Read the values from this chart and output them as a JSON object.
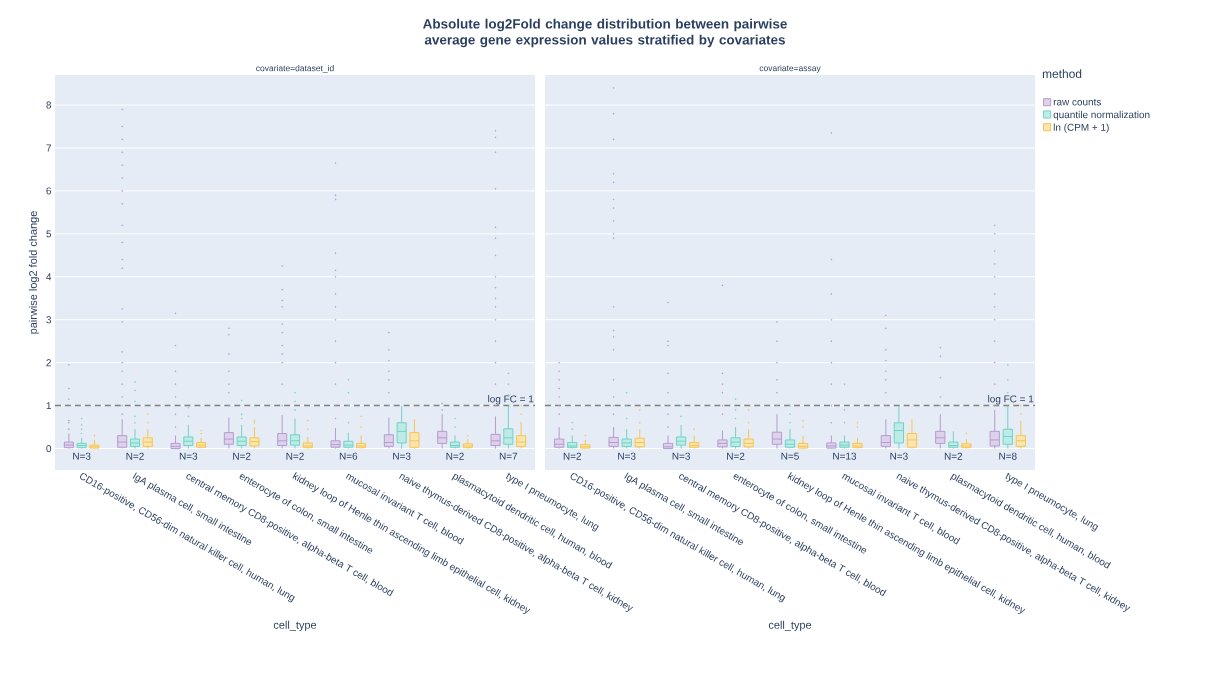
{
  "chart_data": [
    {
      "type": "box",
      "title": "Absolute log2Fold change distribution between pairwise average gene expression values stratified by covariates",
      "subtitle": "covariate=dataset_id",
      "xlabel": "cell_type",
      "ylabel": "pairwise log2 fold change",
      "categories": [
        "CD16-positive, CD56-dim natural killer cell, human, lung",
        "IgA plasma cell, small intestine",
        "central memory CD8-positive, alpha-beta T cell, blood",
        "enterocyte of colon, small intestine",
        "kidney loop of Henle thin ascending limb epithelial cell, kidney",
        "mucosal invariant T cell, blood",
        "naive thymus-derived CD8-positive, alpha-beta T cell, kidney",
        "plasmacytoid dendritic cell, human, blood",
        "type I pneumocyte, lung"
      ],
      "ylim": [
        -0.5,
        8.7
      ],
      "yticks": [
        0,
        1,
        2,
        3,
        4,
        5,
        6,
        7,
        8
      ],
      "grid": "y",
      "ref_lines": [
        {
          "axis": "y",
          "value": 1,
          "label": "log FC = 1",
          "color": "#7f7f7f",
          "line_style": "dashed"
        }
      ],
      "annotations": [
        "N=3",
        "N=2",
        "N=3",
        "N=2",
        "N=2",
        "N=6",
        "N=3",
        "N=2",
        "N=7"
      ],
      "series": [
        {
          "color": "#b49cd0",
          "boxes": [
            {
              "low": 0,
              "q1": 0.02,
              "median": 0.08,
              "q3": 0.15,
              "high": 0.35,
              "outliers": [
                0.45,
                0.6,
                0.65,
                1.15,
                1.4,
                1.95
              ]
            },
            {
              "low": 0,
              "q1": 0.03,
              "median": 0.15,
              "q3": 0.3,
              "high": 0.68,
              "outliers": [
                0.8,
                1.0,
                1.2,
                1.5,
                1.8,
                2.0,
                2.25,
                2.95,
                3.25,
                4.2,
                4.4,
                4.8,
                5.2,
                5.7,
                6.0,
                6.3,
                6.6,
                6.9,
                7.2,
                7.5,
                7.9
              ]
            },
            {
              "low": 0,
              "q1": 0,
              "median": 0.05,
              "q3": 0.12,
              "high": 0.3,
              "outliers": [
                0.5,
                0.8,
                1.2,
                1.5,
                1.8,
                2.4,
                3.15
              ]
            },
            {
              "low": 0,
              "q1": 0.1,
              "median": 0.22,
              "q3": 0.37,
              "high": 0.72,
              "outliers": [
                1.0,
                1.3,
                1.5,
                1.8,
                2.2,
                2.65,
                2.8
              ]
            },
            {
              "low": 0,
              "q1": 0.07,
              "median": 0.18,
              "q3": 0.35,
              "high": 0.78,
              "outliers": [
                1.0,
                1.5,
                2.0,
                2.2,
                2.4,
                2.7,
                2.9,
                3.3,
                3.45,
                3.7,
                4.25
              ]
            },
            {
              "low": 0,
              "q1": 0.03,
              "median": 0.09,
              "q3": 0.18,
              "high": 0.48,
              "outliers": [
                0.7,
                1.0,
                1.5,
                2.0,
                2.5,
                3.0,
                3.3,
                3.6,
                4.0,
                4.15,
                4.55,
                5.8,
                5.9,
                6.65
              ]
            },
            {
              "low": 0,
              "q1": 0.05,
              "median": 0.14,
              "q3": 0.32,
              "high": 0.72,
              "outliers": [
                1.0,
                1.3,
                1.6,
                1.8,
                2.05,
                2.3,
                2.7
              ]
            },
            {
              "low": 0,
              "q1": 0.12,
              "median": 0.25,
              "q3": 0.4,
              "high": 0.8,
              "outliers": [
                0.9,
                1.05
              ]
            },
            {
              "low": 0,
              "q1": 0.07,
              "median": 0.18,
              "q3": 0.33,
              "high": 0.75,
              "outliers": [
                1.0,
                1.5,
                2.0,
                2.5,
                3.0,
                3.3,
                3.5,
                3.75,
                4.0,
                4.5,
                4.9,
                5.15,
                6.05,
                6.9,
                7.25,
                7.4
              ]
            }
          ]
        },
        {
          "color": "#6fd3c6",
          "boxes": [
            {
              "low": 0,
              "q1": 0.02,
              "median": 0.07,
              "q3": 0.12,
              "high": 0.25,
              "outliers": [
                0.35,
                0.45,
                0.55,
                0.7
              ]
            },
            {
              "low": 0,
              "q1": 0.05,
              "median": 0.13,
              "q3": 0.22,
              "high": 0.45,
              "outliers": [
                0.6,
                0.75,
                1.1,
                1.35,
                1.55
              ]
            },
            {
              "low": 0,
              "q1": 0.07,
              "median": 0.17,
              "q3": 0.27,
              "high": 0.55,
              "outliers": [
                0.75,
                0.95
              ]
            },
            {
              "low": 0,
              "q1": 0.07,
              "median": 0.17,
              "q3": 0.27,
              "high": 0.55,
              "outliers": [
                0.7,
                0.8,
                1.12
              ]
            },
            {
              "low": 0,
              "q1": 0.08,
              "median": 0.18,
              "q3": 0.32,
              "high": 0.7,
              "outliers": [
                0.9,
                1.1,
                1.3
              ]
            },
            {
              "low": 0,
              "q1": 0.03,
              "median": 0.08,
              "q3": 0.17,
              "high": 0.37,
              "outliers": [
                0.6,
                1.0,
                1.3,
                1.6
              ]
            },
            {
              "low": 0,
              "q1": 0.13,
              "median": 0.4,
              "q3": 0.6,
              "high": 1.0
            },
            {
              "low": 0,
              "q1": 0.03,
              "median": 0.07,
              "q3": 0.15,
              "high": 0.3,
              "outliers": [
                0.5,
                0.7
              ]
            },
            {
              "low": 0,
              "q1": 0.1,
              "median": 0.25,
              "q3": 0.46,
              "high": 1.0,
              "outliers": [
                1.25,
                1.5,
                1.75
              ]
            }
          ]
        },
        {
          "color": "#f7c54f",
          "boxes": [
            {
              "low": 0,
              "q1": 0.01,
              "median": 0.04,
              "q3": 0.08,
              "high": 0.2,
              "outliers": [
                0.3
              ]
            },
            {
              "low": 0,
              "q1": 0.05,
              "median": 0.15,
              "q3": 0.25,
              "high": 0.45,
              "outliers": [
                0.6,
                0.8
              ]
            },
            {
              "low": 0,
              "q1": 0.03,
              "median": 0.08,
              "q3": 0.14,
              "high": 0.25,
              "outliers": [
                0.35,
                0.42
              ]
            },
            {
              "low": 0,
              "q1": 0.06,
              "median": 0.16,
              "q3": 0.25,
              "high": 0.5,
              "outliers": [
                0.6,
                0.65
              ]
            },
            {
              "low": 0,
              "q1": 0.02,
              "median": 0.06,
              "q3": 0.13,
              "high": 0.27,
              "outliers": [
                0.45,
                0.65
              ]
            },
            {
              "low": 0,
              "q1": 0.02,
              "median": 0.06,
              "q3": 0.12,
              "high": 0.3,
              "outliers": [
                0.5,
                0.75
              ]
            },
            {
              "low": 0,
              "q1": 0.03,
              "median": 0.18,
              "q3": 0.37,
              "high": 0.68
            },
            {
              "low": 0,
              "q1": 0.02,
              "median": 0.06,
              "q3": 0.11,
              "high": 0.22,
              "outliers": [
                0.3
              ]
            },
            {
              "low": 0,
              "q1": 0.05,
              "median": 0.15,
              "q3": 0.3,
              "high": 0.62,
              "outliers": [
                0.8,
                1.0
              ]
            }
          ]
        }
      ]
    },
    {
      "type": "box",
      "subtitle": "covariate=assay",
      "xlabel": "cell_type",
      "legend_title": "method",
      "legend": "top right",
      "tick_labels": "x",
      "categories": [
        "CD16-positive, CD56-dim natural killer cell, human, lung",
        "IgA plasma cell, small intestine",
        "central memory CD8-positive, alpha-beta T cell, blood",
        "enterocyte of colon, small intestine",
        "kidney loop of Henle thin ascending limb epithelial cell, kidney",
        "mucosal invariant T cell, blood",
        "naive thymus-derived CD8-positive, alpha-beta T cell, kidney",
        "plasmacytoid dendritic cell, human, blood",
        "type I pneumocyte, lung"
      ],
      "ylim": [
        -0.5,
        8.7
      ],
      "yticks": [
        0,
        1,
        2,
        3,
        4,
        5,
        6,
        7,
        8
      ],
      "grid": "y",
      "ref_lines": [
        {
          "axis": "y",
          "value": 1,
          "label": "log FC = 1",
          "color": "#7f7f7f",
          "line_style": "dashed"
        }
      ],
      "annotations": [
        "N=2",
        "N=3",
        "N=3",
        "N=2",
        "N=5",
        "N=13",
        "N=3",
        "N=2",
        "N=8"
      ],
      "series": [
        {
          "name": "raw counts",
          "color": "#b49cd0",
          "boxes": [
            {
              "low": 0,
              "q1": 0.03,
              "median": 0.1,
              "q3": 0.22,
              "high": 0.5,
              "outliers": [
                0.8,
                1.0,
                1.2,
                1.4,
                1.6,
                1.8,
                2.0
              ]
            },
            {
              "low": 0,
              "q1": 0.05,
              "median": 0.14,
              "q3": 0.26,
              "high": 0.5,
              "outliers": [
                0.8,
                1.0,
                1.2,
                1.6,
                2.3,
                2.6,
                2.75,
                3.3,
                4.9,
                5.0,
                5.3,
                5.6,
                5.8,
                6.2,
                6.4,
                7.2,
                7.8,
                8.4
              ]
            },
            {
              "low": 0,
              "q1": 0,
              "median": 0.04,
              "q3": 0.12,
              "high": 0.3,
              "outliers": [
                0.5,
                0.8,
                1.0,
                1.3,
                1.75,
                2.4,
                2.5,
                3.4
              ]
            },
            {
              "low": 0,
              "q1": 0.04,
              "median": 0.12,
              "q3": 0.2,
              "high": 0.42,
              "outliers": [
                0.8,
                1.0,
                1.3,
                1.5,
                1.75,
                3.8
              ]
            },
            {
              "low": 0,
              "q1": 0.1,
              "median": 0.22,
              "q3": 0.38,
              "high": 0.8,
              "outliers": [
                1.0,
                1.3,
                1.6,
                2.0,
                2.5,
                2.95
              ]
            },
            {
              "low": 0,
              "q1": 0.01,
              "median": 0.06,
              "q3": 0.13,
              "high": 0.3,
              "outliers": [
                0.6,
                1.0,
                1.5,
                2.0,
                2.5,
                3.0,
                3.6,
                4.4,
                7.35
              ]
            },
            {
              "low": 0,
              "q1": 0.05,
              "median": 0.14,
              "q3": 0.3,
              "high": 0.68,
              "outliers": [
                1.0,
                1.3,
                1.6,
                1.8,
                2.05,
                2.3,
                2.8,
                3.1
              ]
            },
            {
              "low": 0,
              "q1": 0.12,
              "median": 0.25,
              "q3": 0.4,
              "high": 0.8,
              "outliers": [
                1.0,
                1.2,
                1.65,
                2.15,
                2.35
              ]
            },
            {
              "low": 0,
              "q1": 0.06,
              "median": 0.2,
              "q3": 0.4,
              "high": 0.9,
              "outliers": [
                1.0,
                1.5,
                2.0,
                2.5,
                3.0,
                3.3,
                3.6,
                4.0,
                4.3,
                4.6,
                5.0,
                5.2
              ]
            }
          ]
        },
        {
          "name": "quantile normalization",
          "color": "#6fd3c6",
          "boxes": [
            {
              "low": 0,
              "q1": 0.02,
              "median": 0.06,
              "q3": 0.14,
              "high": 0.3,
              "outliers": [
                0.45,
                0.6
              ]
            },
            {
              "low": 0,
              "q1": 0.05,
              "median": 0.13,
              "q3": 0.22,
              "high": 0.45,
              "outliers": [
                0.7,
                1.0,
                1.3
              ]
            },
            {
              "low": 0,
              "q1": 0.08,
              "median": 0.17,
              "q3": 0.27,
              "high": 0.55,
              "outliers": [
                0.75,
                1.0
              ]
            },
            {
              "low": 0,
              "q1": 0.05,
              "median": 0.15,
              "q3": 0.25,
              "high": 0.5,
              "outliers": [
                0.7,
                0.9,
                1.15
              ]
            },
            {
              "low": 0,
              "q1": 0.03,
              "median": 0.1,
              "q3": 0.2,
              "high": 0.45,
              "outliers": [
                0.6,
                0.8,
                1.0
              ]
            },
            {
              "low": 0,
              "q1": 0.03,
              "median": 0.08,
              "q3": 0.15,
              "high": 0.3,
              "outliers": [
                0.6,
                0.9,
                1.5
              ]
            },
            {
              "low": 0,
              "q1": 0.13,
              "median": 0.42,
              "q3": 0.6,
              "high": 1.0
            },
            {
              "low": 0,
              "q1": 0.03,
              "median": 0.07,
              "q3": 0.15,
              "high": 0.4
            },
            {
              "low": 0,
              "q1": 0.1,
              "median": 0.28,
              "q3": 0.45,
              "high": 1.0,
              "outliers": [
                1.3,
                1.6,
                1.95
              ]
            }
          ]
        },
        {
          "name": "ln (CPM + 1)",
          "color": "#f7c54f",
          "boxes": [
            {
              "low": 0,
              "q1": 0.01,
              "median": 0.04,
              "q3": 0.09,
              "high": 0.2,
              "outliers": [
                0.3
              ]
            },
            {
              "low": 0,
              "q1": 0.04,
              "median": 0.14,
              "q3": 0.24,
              "high": 0.45,
              "outliers": [
                0.6,
                0.9
              ]
            },
            {
              "low": 0,
              "q1": 0.03,
              "median": 0.07,
              "q3": 0.14,
              "high": 0.3,
              "outliers": [
                0.45
              ]
            },
            {
              "low": 0,
              "q1": 0.04,
              "median": 0.12,
              "q3": 0.22,
              "high": 0.45,
              "outliers": [
                0.6,
                0.9
              ]
            },
            {
              "low": 0,
              "q1": 0.01,
              "median": 0.05,
              "q3": 0.12,
              "high": 0.3,
              "outliers": [
                0.5,
                0.65
              ]
            },
            {
              "low": 0,
              "q1": 0.02,
              "median": 0.06,
              "q3": 0.12,
              "high": 0.25,
              "outliers": [
                0.5,
                0.6
              ]
            },
            {
              "low": 0,
              "q1": 0.03,
              "median": 0.2,
              "q3": 0.35,
              "high": 0.68
            },
            {
              "low": 0,
              "q1": 0.02,
              "median": 0.06,
              "q3": 0.11,
              "high": 0.22,
              "outliers": [
                0.35
              ]
            },
            {
              "low": 0,
              "q1": 0.05,
              "median": 0.18,
              "q3": 0.3,
              "high": 0.65,
              "outliers": [
                0.8,
                1.0
              ]
            }
          ]
        }
      ]
    }
  ]
}
